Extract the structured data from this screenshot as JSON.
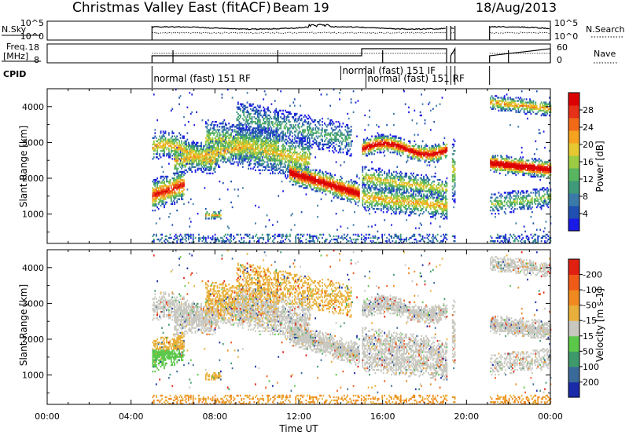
{
  "header": {
    "station": "Christmas Valley East (fitACF)",
    "beam": "Beam 19",
    "date": "18/Aug/2013"
  },
  "noise_panel": {
    "left_label": "N.Sky",
    "right_label": "N.Search",
    "left_ticks": [
      "10^5",
      "10^0"
    ],
    "right_ticks": [
      "10^5",
      "10^0"
    ]
  },
  "freq_panel": {
    "left_label_1": "Freq.",
    "left_label_2": "[MHz]",
    "right_label": "Nave",
    "left_ticks": [
      "18",
      "8"
    ],
    "right_ticks": [
      "60",
      "0"
    ]
  },
  "cpid": {
    "label": "CPID",
    "entries": [
      {
        "text": "normal (fast) 151 RF",
        "t": 5.0
      },
      {
        "text": "normal (fast) 151 IF",
        "t": 14.0
      },
      {
        "text": "normal (fast) 151 RF",
        "t": 15.2
      }
    ]
  },
  "chart_data": [
    {
      "type": "heatmap",
      "name": "power",
      "ylabel": "Slant Range [km]",
      "xlabel": "Time UT",
      "ylim": [
        180,
        4500
      ],
      "xlim": [
        0,
        24
      ],
      "colorbar": {
        "label": "Power [dB]",
        "ticks": [
          "4",
          "8",
          "12",
          "16",
          "20",
          "24",
          "28"
        ],
        "colors": [
          "#1a1ae6",
          "#1f4fb0",
          "#3a7aa8",
          "#3e9a78",
          "#58b560",
          "#9ccc44",
          "#e6c830",
          "#f5a21e",
          "#f06a18",
          "#e63018",
          "#dc0000"
        ]
      }
    },
    {
      "type": "heatmap",
      "name": "velocity",
      "ylabel": "Slant Range [km]",
      "xlabel": "Time UT",
      "ylim": [
        180,
        4500
      ],
      "xlim": [
        0,
        24
      ],
      "colorbar": {
        "label": "Velocity [m s-1]",
        "ticks": [
          "200",
          "100",
          "50",
          "15",
          "-15",
          "-50",
          "-100",
          "-200"
        ],
        "colors": [
          "#1a2aa8",
          "#3a6a9a",
          "#3e9a6a",
          "#5cc84a",
          "#c8c8c0",
          "#e8b03a",
          "#f08a20",
          "#f05a18",
          "#e02010"
        ]
      }
    }
  ],
  "x_axis": {
    "title": "Time UT",
    "ticks": [
      "00:00",
      "04:00",
      "08:00",
      "12:00",
      "16:00",
      "20:00",
      "00:00"
    ]
  },
  "y_axis": {
    "ticks": [
      "1000",
      "2000",
      "3000",
      "4000"
    ]
  }
}
